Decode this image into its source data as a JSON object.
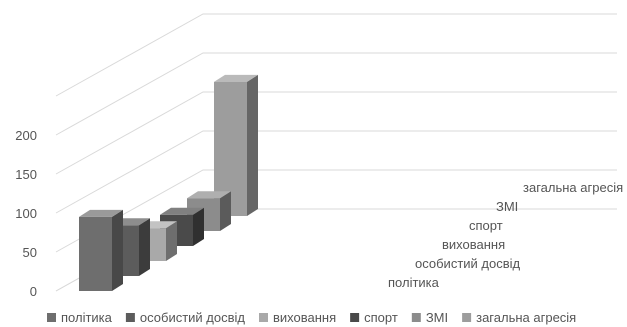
{
  "chart_data": {
    "type": "bar",
    "subtype": "3d-column",
    "title": "",
    "xlabel": "",
    "ylabel": "",
    "ylim": [
      0,
      200
    ],
    "y_ticks": [
      "0",
      "50",
      "100",
      "150",
      "200"
    ],
    "grid": true,
    "legend_position": "bottom",
    "series": [
      {
        "name": "політика",
        "value": 95,
        "color": "#6e6e6e"
      },
      {
        "name": "особистий досвід",
        "value": 65,
        "color": "#5c5c5c"
      },
      {
        "name": "виховання",
        "value": 42,
        "color": "#a9a9a9"
      },
      {
        "name": "спорт",
        "value": 40,
        "color": "#4a4a4a"
      },
      {
        "name": "ЗМІ",
        "value": 42,
        "color": "#8c8c8c"
      },
      {
        "name": "загальна агресія",
        "value": 172,
        "color": "#9d9d9d"
      }
    ]
  }
}
